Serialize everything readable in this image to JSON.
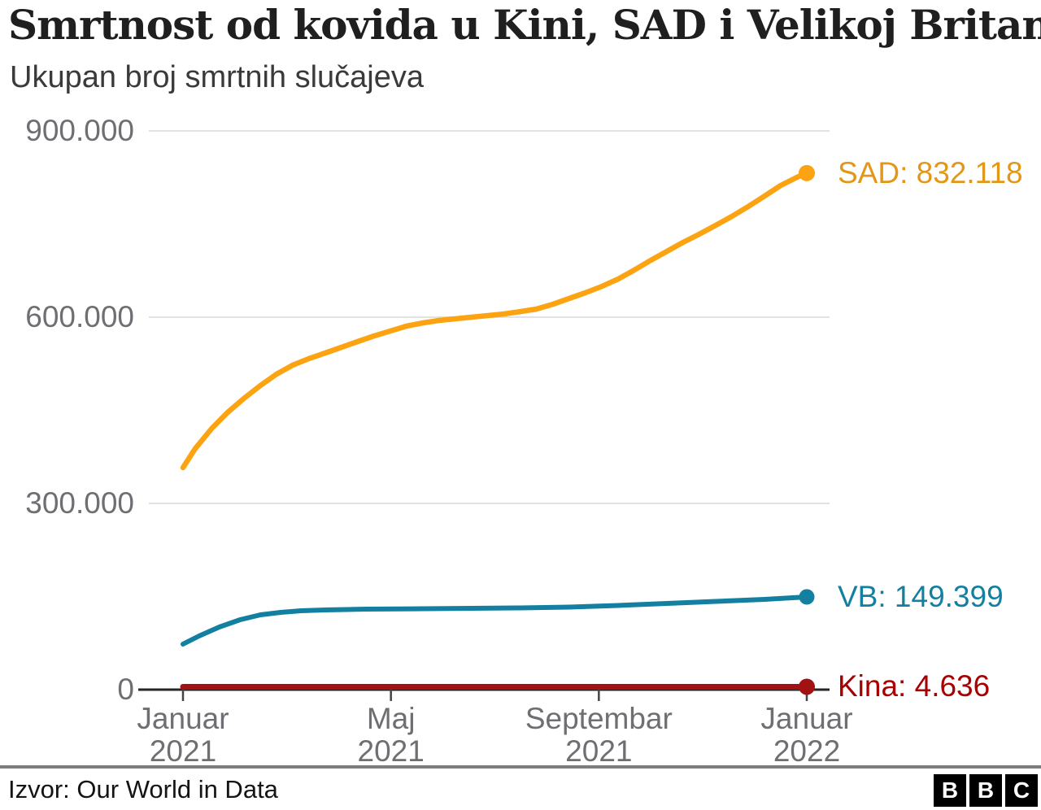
{
  "header": {
    "title": "Smrtnost od kovida u Kini, SAD i Velikoj Britaniji",
    "subtitle": "Ukupan broj smrtnih slučajeva"
  },
  "footer": {
    "source": "Izvor: Our World in Data",
    "logo_letters": [
      "B",
      "B",
      "C"
    ]
  },
  "colors": {
    "sad_line": "#fca311",
    "sad_label": "#e39718",
    "vb_line": "#1380a1",
    "vb_label": "#1380a1",
    "kina_line": "#a31212",
    "kina_label": "#a80000",
    "gridline": "#e2e2e2",
    "axis": "#262626",
    "tick": "#454548",
    "axis_text": "#6e6e73"
  },
  "chart_data": {
    "type": "line",
    "title": "Smrtnost od kovida u Kini, SAD i Velikoj Britaniji",
    "subtitle": "Ukupan broj smrtnih slučajeva",
    "grid": "horizontal",
    "legend_position": "right-of-line-ends",
    "xlim_months": [
      0,
      12
    ],
    "ylim": [
      0,
      900000
    ],
    "y_ticks": [
      {
        "label": "900.000",
        "value": 900000
      },
      {
        "label": "600.000",
        "value": 600000
      },
      {
        "label": "300.000",
        "value": 300000
      },
      {
        "label": "0",
        "value": 0
      }
    ],
    "x_ticks": [
      {
        "line1": "Januar",
        "line2": "2021",
        "month": 0
      },
      {
        "line1": "Maj",
        "line2": "2021",
        "month": 4
      },
      {
        "line1": "Septembar",
        "line2": "2021",
        "month": 8
      },
      {
        "line1": "Januar",
        "line2": "2022",
        "month": 12
      }
    ],
    "series": [
      {
        "name": "SAD",
        "label": "SAD: 832.118",
        "final_value": 832118,
        "points": [
          [
            0,
            357600
          ],
          [
            0.23,
            387700
          ],
          [
            0.55,
            420500
          ],
          [
            0.86,
            446700
          ],
          [
            1.17,
            469000
          ],
          [
            1.49,
            490000
          ],
          [
            1.8,
            508300
          ],
          [
            2.11,
            522700
          ],
          [
            2.42,
            533200
          ],
          [
            2.74,
            542300
          ],
          [
            3.05,
            551500
          ],
          [
            3.36,
            560700
          ],
          [
            3.68,
            569900
          ],
          [
            3.99,
            577700
          ],
          [
            4.3,
            585600
          ],
          [
            4.62,
            590800
          ],
          [
            4.93,
            594700
          ],
          [
            5.24,
            597400
          ],
          [
            5.55,
            600000
          ],
          [
            5.87,
            602600
          ],
          [
            6.18,
            605200
          ],
          [
            6.49,
            609100
          ],
          [
            6.8,
            613100
          ],
          [
            7.12,
            620900
          ],
          [
            7.43,
            630100
          ],
          [
            7.74,
            639300
          ],
          [
            8.06,
            649700
          ],
          [
            8.37,
            661500
          ],
          [
            8.68,
            675900
          ],
          [
            9.0,
            691700
          ],
          [
            9.31,
            706100
          ],
          [
            9.62,
            720500
          ],
          [
            9.93,
            733600
          ],
          [
            10.25,
            748000
          ],
          [
            10.56,
            762400
          ],
          [
            10.87,
            778100
          ],
          [
            11.19,
            795200
          ],
          [
            11.5,
            812200
          ],
          [
            11.81,
            825300
          ],
          [
            12,
            832118
          ]
        ]
      },
      {
        "name": "VB",
        "label": "VB: 149.399",
        "final_value": 149399,
        "points": [
          [
            0,
            73400
          ],
          [
            0.31,
            86500
          ],
          [
            0.7,
            100900
          ],
          [
            1.1,
            112700
          ],
          [
            1.49,
            120500
          ],
          [
            1.88,
            124400
          ],
          [
            2.27,
            127100
          ],
          [
            2.74,
            128400
          ],
          [
            3.52,
            129700
          ],
          [
            4.62,
            130300
          ],
          [
            5.55,
            131000
          ],
          [
            6.49,
            131600
          ],
          [
            7.43,
            133000
          ],
          [
            8.37,
            135600
          ],
          [
            9.31,
            138900
          ],
          [
            10.25,
            142100
          ],
          [
            11.19,
            145400
          ],
          [
            12,
            149399
          ]
        ]
      },
      {
        "name": "Kina",
        "label": "Kina: 4.636",
        "final_value": 4636,
        "points": [
          [
            0,
            4634
          ],
          [
            6,
            4635
          ],
          [
            12,
            4636
          ]
        ]
      }
    ]
  }
}
